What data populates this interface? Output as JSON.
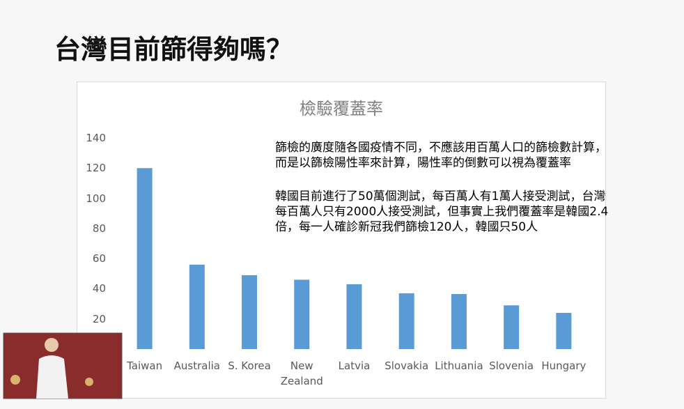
{
  "slide_title": "台灣目前篩得夠嗎？",
  "chart_data": {
    "type": "bar",
    "title": "檢驗覆蓋率",
    "categories": [
      "Taiwan",
      "Australia",
      "S. Korea",
      "New Zealand",
      "Latvia",
      "Slovakia",
      "Lithuania",
      "Slovenia",
      "Hungary"
    ],
    "values": [
      120,
      56,
      49,
      46,
      43,
      37,
      36.5,
      29,
      24
    ],
    "color": "#5b9bd5",
    "ylim": [
      0,
      140
    ],
    "yticks": [
      20,
      40,
      60,
      80,
      100,
      120,
      140
    ],
    "grid": false,
    "annotations": [
      [
        "篩檢的廣度隨各國疫情不同，不應該用百萬人口的篩檢數計算，",
        "而是以篩檢陽性率來計算，陽性率的倒數可以視為覆蓋率"
      ],
      [
        "韓國目前進行了50萬個測試，每百萬人有1萬人接受測試，台灣",
        "每百萬人只有2000人接受測試，但事實上我們覆蓋率是韓國2.4",
        "倍，每一人確診新冠我們篩檢120人，韓國只50人"
      ]
    ]
  }
}
